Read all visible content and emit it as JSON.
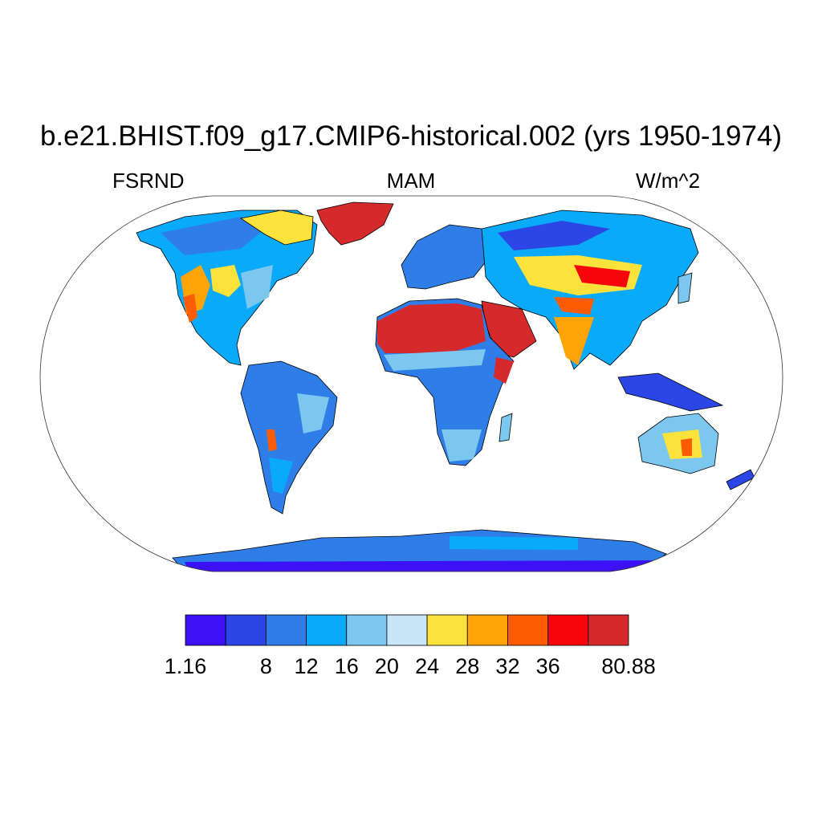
{
  "title": "b.e21.BHIST.f09_g17.CMIP6-historical.002 (yrs 1950-1974)",
  "left_label": "FSRND",
  "center_label": "MAM",
  "right_label": "W/m^2",
  "map": {
    "projection": "Robinson",
    "field": "FSRND",
    "season": "MAM",
    "units": "W/m^2",
    "ocean_color": "#ffffff",
    "coastline_color": "#000000"
  },
  "colorbar": {
    "orientation": "horizontal",
    "bins": [
      {
        "color": "#3d11f6"
      },
      {
        "color": "#2b46e5"
      },
      {
        "color": "#2f7ee8"
      },
      {
        "color": "#0aaafa"
      },
      {
        "color": "#7cc7ef"
      },
      {
        "color": "#c8e6f7"
      },
      {
        "color": "#fde23c"
      },
      {
        "color": "#fea407"
      },
      {
        "color": "#fe5b05"
      },
      {
        "color": "#f6050a"
      },
      {
        "color": "#d52a2b"
      }
    ],
    "tick_labels": [
      "1.16",
      "8",
      "12",
      "16",
      "20",
      "24",
      "28",
      "32",
      "36",
      "80.88"
    ],
    "tick_edges": [
      0,
      2,
      3,
      4,
      5,
      6,
      7,
      8,
      9,
      11
    ]
  }
}
